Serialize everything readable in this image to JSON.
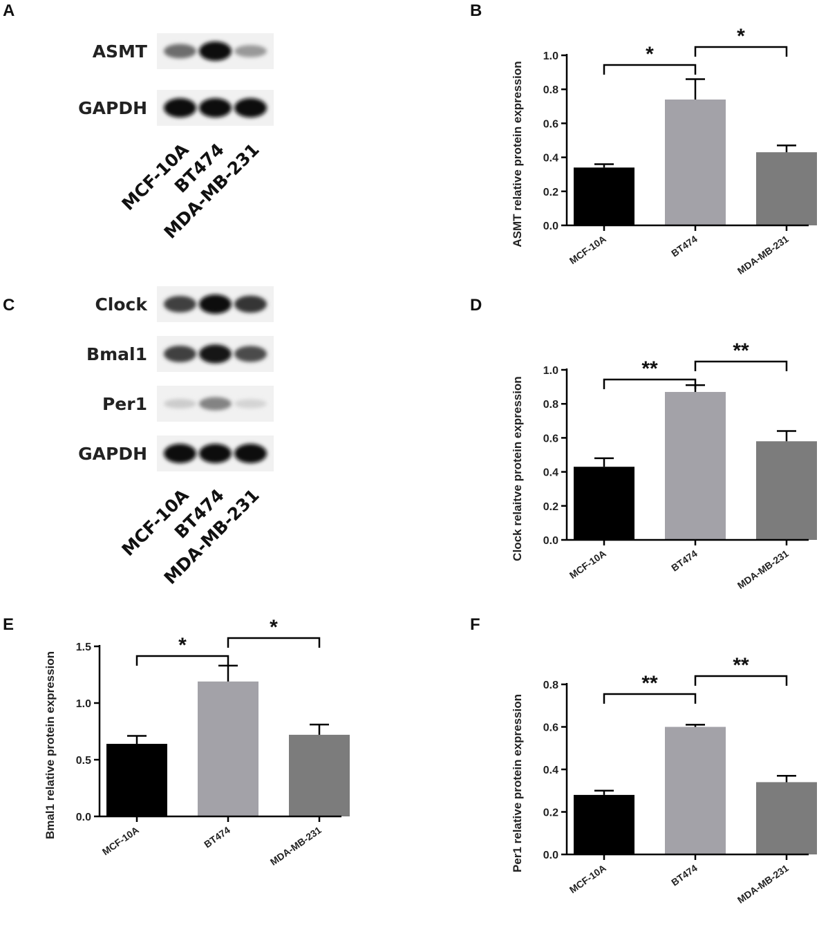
{
  "panels": {
    "A": {
      "label": "A"
    },
    "B": {
      "label": "B"
    },
    "C": {
      "label": "C"
    },
    "D": {
      "label": "D"
    },
    "E": {
      "label": "E"
    },
    "F": {
      "label": "F"
    }
  },
  "blots": [
    {
      "id": "A",
      "rows": [
        {
          "label": "ASMT",
          "intensity": [
            0.55,
            1.0,
            0.35
          ]
        },
        {
          "label": "GAPDH",
          "intensity": [
            1.0,
            1.0,
            1.0
          ]
        }
      ],
      "lanes": [
        "MCF-10A",
        "BT474",
        "MDA-MB-231"
      ]
    },
    {
      "id": "C",
      "rows": [
        {
          "label": "Clock",
          "intensity": [
            0.75,
            1.0,
            0.8
          ]
        },
        {
          "label": "Bmal1",
          "intensity": [
            0.75,
            0.95,
            0.7
          ]
        },
        {
          "label": "Per1",
          "intensity": [
            0.12,
            0.45,
            0.08
          ]
        },
        {
          "label": "GAPDH",
          "intensity": [
            1.0,
            1.0,
            1.0
          ]
        }
      ],
      "lanes": [
        "MCF-10A",
        "BT474",
        "MDA-MB-231"
      ]
    }
  ],
  "chart_data": [
    {
      "id": "B",
      "type": "bar",
      "categories": [
        "MCF-10A",
        "BT474",
        "MDA-MB-231"
      ],
      "values": [
        0.34,
        0.74,
        0.43
      ],
      "errors": [
        0.02,
        0.12,
        0.04
      ],
      "colors": [
        "#000000",
        "#a3a2a8",
        "#7c7c7c"
      ],
      "ylabel": "ASMT relative protein expression",
      "ylim": [
        0,
        1.0
      ],
      "yticks": [
        "0.0",
        "0.2",
        "0.4",
        "0.6",
        "0.8",
        "1.0"
      ],
      "significance": [
        {
          "from": 0,
          "to": 1,
          "label": "*"
        },
        {
          "from": 1,
          "to": 2,
          "label": "*"
        }
      ]
    },
    {
      "id": "D",
      "type": "bar",
      "categories": [
        "MCF-10A",
        "BT474",
        "MDA-MB-231"
      ],
      "values": [
        0.43,
        0.87,
        0.58
      ],
      "errors": [
        0.05,
        0.04,
        0.06
      ],
      "colors": [
        "#000000",
        "#a3a2a8",
        "#7c7c7c"
      ],
      "ylabel": "Clock relaitve protein expression",
      "ylim": [
        0,
        1.0
      ],
      "yticks": [
        "0.0",
        "0.2",
        "0.4",
        "0.6",
        "0.8",
        "1.0"
      ],
      "significance": [
        {
          "from": 0,
          "to": 1,
          "label": "**"
        },
        {
          "from": 1,
          "to": 2,
          "label": "**"
        }
      ]
    },
    {
      "id": "E",
      "type": "bar",
      "categories": [
        "MCF-10A",
        "BT474",
        "MDA-MB-231"
      ],
      "values": [
        0.64,
        1.19,
        0.72
      ],
      "errors": [
        0.07,
        0.14,
        0.09
      ],
      "colors": [
        "#000000",
        "#a3a2a8",
        "#7c7c7c"
      ],
      "ylabel": "Bmal1 relative protein expression",
      "ylim": [
        0,
        1.5
      ],
      "yticks": [
        "0.0",
        "0.5",
        "1.0",
        "1.5"
      ],
      "significance": [
        {
          "from": 0,
          "to": 1,
          "label": "*"
        },
        {
          "from": 1,
          "to": 2,
          "label": "*"
        }
      ]
    },
    {
      "id": "F",
      "type": "bar",
      "categories": [
        "MCF-10A",
        "BT474",
        "MDA-MB-231"
      ],
      "values": [
        0.28,
        0.6,
        0.34
      ],
      "errors": [
        0.02,
        0.01,
        0.03
      ],
      "colors": [
        "#000000",
        "#a3a2a8",
        "#7c7c7c"
      ],
      "ylabel": "Per1 relative protein expression",
      "ylim": [
        0,
        0.8
      ],
      "yticks": [
        "0.0",
        "0.2",
        "0.4",
        "0.6",
        "0.8"
      ],
      "significance": [
        {
          "from": 0,
          "to": 1,
          "label": "**"
        },
        {
          "from": 1,
          "to": 2,
          "label": "**"
        }
      ]
    }
  ]
}
